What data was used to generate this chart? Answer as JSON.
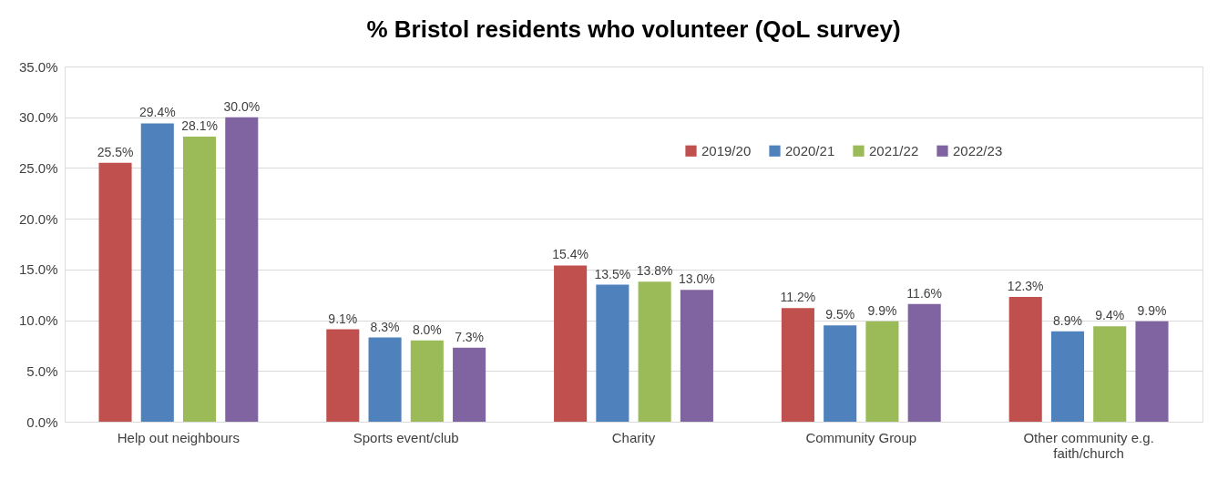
{
  "chart_data": {
    "type": "bar",
    "title": "% Bristol residents who volunteer (QoL survey)",
    "categories": [
      "Help out neighbours",
      "Sports event/club",
      "Charity",
      "Community Group",
      "Other community e.g. faith/church"
    ],
    "series": [
      {
        "name": "2019/20",
        "color": "#c0504d",
        "values": [
          25.5,
          9.1,
          15.4,
          11.2,
          12.3
        ],
        "value_labels": [
          "25.5%",
          "9.1%",
          "15.4%",
          "11.2%",
          "12.3%"
        ]
      },
      {
        "name": "2020/21",
        "color": "#4f81bd",
        "values": [
          29.4,
          8.3,
          13.5,
          9.5,
          8.9
        ],
        "value_labels": [
          "29.4%",
          "8.3%",
          "13.5%",
          "9.5%",
          "8.9%"
        ]
      },
      {
        "name": "2021/22",
        "color": "#9bbb59",
        "values": [
          28.1,
          8.0,
          13.8,
          9.9,
          9.4
        ],
        "value_labels": [
          "28.1%",
          "8.0%",
          "13.8%",
          "9.9%",
          "9.4%"
        ]
      },
      {
        "name": "2022/23",
        "color": "#8064a2",
        "values": [
          30.0,
          7.3,
          13.0,
          11.6,
          9.9
        ],
        "value_labels": [
          "30.0%",
          "7.3%",
          "13.0%",
          "11.6%",
          "9.9%"
        ]
      }
    ],
    "ylim": [
      0,
      35
    ],
    "yticks": [
      {
        "value": 0,
        "label": "0.0%"
      },
      {
        "value": 5,
        "label": "5.0%"
      },
      {
        "value": 10,
        "label": "10.0%"
      },
      {
        "value": 15,
        "label": "15.0%"
      },
      {
        "value": 20,
        "label": "20.0%"
      },
      {
        "value": 25,
        "label": "25.0%"
      },
      {
        "value": 30,
        "label": "30.0%"
      },
      {
        "value": 35,
        "label": "35.0%"
      }
    ],
    "grid": "y",
    "legend": "top right"
  }
}
